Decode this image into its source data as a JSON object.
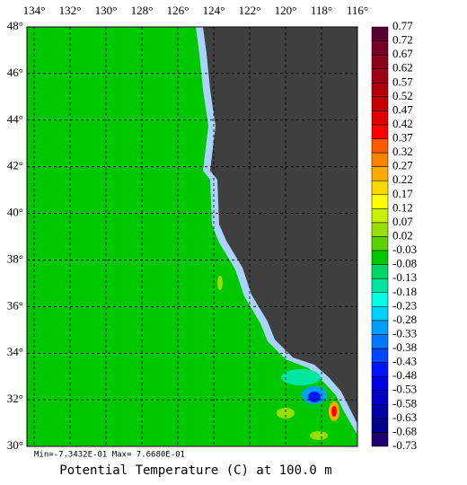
{
  "chart_data": {
    "type": "heatmap",
    "title": "Potential Temperature (C) at 100.0 m",
    "annotation": "Min=-7.3432E-01  Max= 7.6680E-01",
    "xlim": [
      134.4,
      116
    ],
    "ylim": [
      30,
      48
    ],
    "xticks": [
      {
        "value": 134,
        "label": "134°"
      },
      {
        "value": 132,
        "label": "132°"
      },
      {
        "value": 130,
        "label": "130°"
      },
      {
        "value": 128,
        "label": "128°"
      },
      {
        "value": 126,
        "label": "126°"
      },
      {
        "value": 124,
        "label": "124°"
      },
      {
        "value": 122,
        "label": "122°"
      },
      {
        "value": 120,
        "label": "120°"
      },
      {
        "value": 118,
        "label": "118°"
      },
      {
        "value": 116,
        "label": "116°"
      }
    ],
    "yticks": [
      {
        "value": 48,
        "label": "48°"
      },
      {
        "value": 46,
        "label": "46°"
      },
      {
        "value": 44,
        "label": "44°"
      },
      {
        "value": 42,
        "label": "42°"
      },
      {
        "value": 40,
        "label": "40°"
      },
      {
        "value": 38,
        "label": "38°"
      },
      {
        "value": 36,
        "label": "36°"
      },
      {
        "value": 34,
        "label": "34°"
      },
      {
        "value": 32,
        "label": "32°"
      },
      {
        "value": 30,
        "label": "30°"
      }
    ],
    "grid": true,
    "colorbar": {
      "labels": [
        0.77,
        0.72,
        0.67,
        0.62,
        0.57,
        0.52,
        0.47,
        0.42,
        0.37,
        0.32,
        0.27,
        0.22,
        0.17,
        0.12,
        0.07,
        0.02,
        -0.03,
        -0.08,
        -0.13,
        -0.18,
        -0.23,
        -0.28,
        -0.33,
        -0.38,
        -0.43,
        -0.48,
        -0.53,
        -0.58,
        -0.63,
        -0.68,
        -0.73
      ],
      "colors": [
        "#5a0032",
        "#780028",
        "#8c001e",
        "#a00014",
        "#b4000a",
        "#c80000",
        "#e10000",
        "#ff0000",
        "#ff5a00",
        "#ff8200",
        "#ffaa00",
        "#ffd700",
        "#ffff00",
        "#c8f000",
        "#96e100",
        "#5ad200",
        "#00c800",
        "#00d764",
        "#00e6a0",
        "#00ffe6",
        "#00d2ff",
        "#00a0ff",
        "#0078ff",
        "#0046ff",
        "#0014ff",
        "#0000e6",
        "#0000c8",
        "#0000aa",
        "#00008c",
        "#1e0070"
      ]
    }
  }
}
